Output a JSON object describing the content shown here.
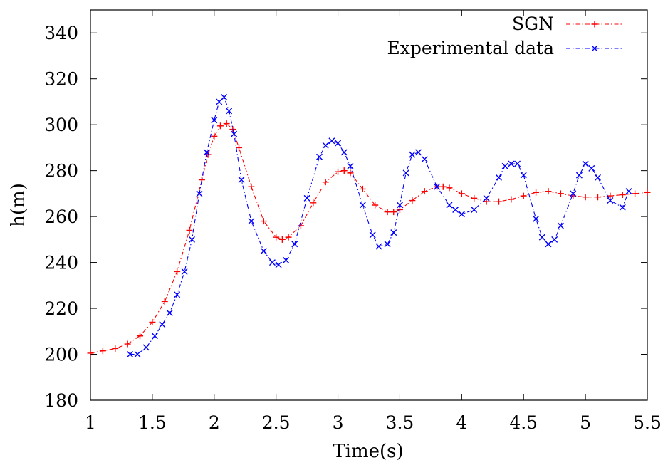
{
  "chart_data": {
    "type": "line",
    "xlabel": "Time(s)",
    "ylabel": "h(m)",
    "xlim": [
      1,
      5.5
    ],
    "ylim": [
      180,
      350
    ],
    "xticks": [
      1,
      1.5,
      2,
      2.5,
      3,
      3.5,
      4,
      4.5,
      5,
      5.5
    ],
    "xtick_labels": [
      "1",
      "1.5",
      "2",
      "2.5",
      "3",
      "3.5",
      "4",
      "4.5",
      "5",
      "5.5"
    ],
    "yticks": [
      180,
      200,
      220,
      240,
      260,
      280,
      300,
      320,
      340
    ],
    "ytick_labels": [
      "180",
      "200",
      "220",
      "240",
      "260",
      "280",
      "300",
      "320",
      "340"
    ],
    "grid": false,
    "legend_position": "top-right",
    "series": [
      {
        "name": "SGN",
        "color": "#ff0000",
        "marker": "plus",
        "line_style": "dash-dot",
        "x": [
          1.0,
          1.1,
          1.2,
          1.3,
          1.4,
          1.5,
          1.6,
          1.7,
          1.8,
          1.9,
          1.95,
          2.0,
          2.05,
          2.1,
          2.15,
          2.2,
          2.3,
          2.4,
          2.5,
          2.55,
          2.6,
          2.7,
          2.8,
          2.9,
          3.0,
          3.05,
          3.1,
          3.2,
          3.3,
          3.4,
          3.45,
          3.5,
          3.6,
          3.7,
          3.8,
          3.85,
          3.9,
          4.0,
          4.1,
          4.2,
          4.3,
          4.4,
          4.5,
          4.6,
          4.7,
          4.8,
          4.9,
          5.0,
          5.1,
          5.2,
          5.3,
          5.4,
          5.5
        ],
        "y": [
          200.5,
          201.5,
          202.5,
          204.5,
          208.0,
          214.0,
          223.0,
          236.0,
          254.0,
          276.0,
          287.0,
          295.0,
          299.5,
          300.5,
          298.0,
          290.0,
          273.0,
          258.0,
          251.0,
          250.0,
          251.0,
          256.0,
          266.0,
          275.0,
          279.5,
          280.0,
          279.0,
          272.0,
          265.0,
          262.0,
          262.0,
          263.0,
          267.0,
          271.0,
          273.0,
          273.0,
          272.5,
          270.0,
          268.0,
          266.5,
          266.5,
          267.5,
          269.0,
          270.5,
          271.0,
          270.0,
          269.0,
          268.5,
          268.5,
          269.0,
          269.5,
          270.0,
          270.5
        ]
      },
      {
        "name": "Experimental data",
        "color": "#0000ff",
        "marker": "cross",
        "line_style": "dash-dot",
        "x": [
          1.32,
          1.38,
          1.45,
          1.52,
          1.58,
          1.64,
          1.7,
          1.76,
          1.82,
          1.88,
          1.94,
          2.0,
          2.04,
          2.08,
          2.12,
          2.16,
          2.22,
          2.3,
          2.4,
          2.47,
          2.52,
          2.58,
          2.65,
          2.75,
          2.85,
          2.9,
          2.95,
          3.0,
          3.05,
          3.1,
          3.2,
          3.28,
          3.33,
          3.4,
          3.45,
          3.5,
          3.55,
          3.6,
          3.65,
          3.7,
          3.8,
          3.9,
          3.95,
          4.0,
          4.1,
          4.2,
          4.3,
          4.35,
          4.4,
          4.45,
          4.5,
          4.6,
          4.65,
          4.7,
          4.75,
          4.8,
          4.9,
          4.95,
          5.0,
          5.05,
          5.1,
          5.2,
          5.3,
          5.35
        ],
        "y": [
          200.0,
          200.0,
          203.0,
          208.0,
          213.0,
          218.0,
          226.0,
          236.0,
          250.0,
          270.0,
          288.0,
          302.0,
          310.0,
          312.0,
          306.0,
          296.0,
          276.0,
          258.0,
          245.0,
          240.0,
          239.0,
          241.0,
          248.0,
          268.0,
          286.0,
          291.0,
          293.0,
          292.0,
          288.0,
          282.0,
          265.0,
          252.0,
          247.0,
          248.0,
          253.0,
          265.0,
          279.0,
          287.0,
          288.0,
          285.0,
          273.0,
          265.0,
          263.0,
          261.0,
          263.0,
          268.0,
          277.0,
          282.0,
          283.0,
          283.0,
          278.0,
          259.0,
          251.0,
          248.0,
          250.0,
          256.0,
          270.0,
          278.0,
          283.0,
          281.0,
          277.0,
          267.0,
          264.0,
          271.0
        ]
      }
    ]
  }
}
